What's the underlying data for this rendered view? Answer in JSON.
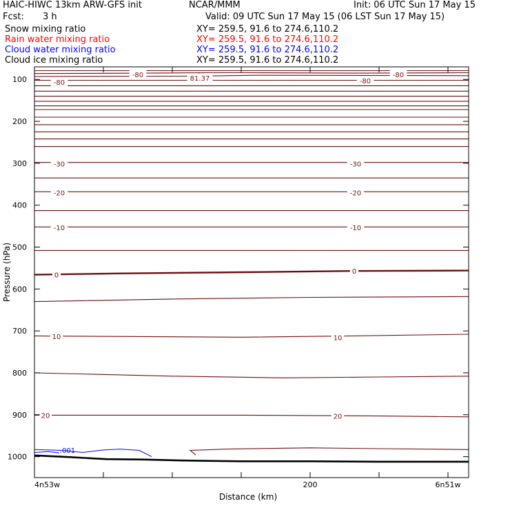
{
  "header": {
    "model": "HAIC-HIWC 13km ARW-GFS init",
    "center": "NCAR/MMM",
    "init": "Init: 06 UTC Sun 17 May 15",
    "fcst_label": "Fcst:",
    "fcst_value": "3 h",
    "valid": "Valid: 09 UTC Sun 17 May 15 (06 LST Sun 17 May 15)"
  },
  "fields": [
    {
      "name": "Snow mixing ratio",
      "xy": "XY= 259.5, 91.6 to 274.6,110.2",
      "color": "#000000"
    },
    {
      "name": "Rain water mixing ratio",
      "xy": "XY= 259.5, 91.6 to 274.6,110.2",
      "color": "#ff0000"
    },
    {
      "name": "Cloud water mixing ratio",
      "xy": "XY= 259.5, 91.6 to 274.6,110.2",
      "color": "#0000ff"
    },
    {
      "name": "Cloud ice mixing ratio",
      "xy": "XY= 259.5, 91.6 to 274.6,110.2",
      "color": "#000000"
    }
  ],
  "chart_data": {
    "type": "line",
    "xlabel": "Distance (km)",
    "ylabel": "Pressure (hPa)",
    "xlim": [
      0,
      315
    ],
    "ylim": [
      1050,
      70
    ],
    "x_ticks": [
      50,
      100,
      150,
      200,
      250,
      300
    ],
    "x_tick_labels": [
      {
        "x": 0,
        "label": "4n53w"
      },
      {
        "x": 200,
        "label": "200"
      },
      {
        "x": 300,
        "label": "6n51w"
      }
    ],
    "y_ticks": [
      100,
      200,
      300,
      400,
      500,
      600,
      700,
      800,
      900,
      1000
    ],
    "y_tick_labels": [
      "100",
      "200",
      "300",
      "400",
      "500",
      "600",
      "700",
      "800",
      "900",
      "1000"
    ],
    "contour_color": "#6b0d0d",
    "temperature_contours": [
      {
        "points": [
          [
            0,
            79
          ],
          [
            315,
            79
          ]
        ]
      },
      {
        "points": [
          [
            0,
            86
          ],
          [
            80,
            85
          ],
          [
            125,
            84
          ],
          [
            160,
            84
          ],
          [
            240,
            85
          ],
          [
            315,
            84
          ]
        ]
      },
      {
        "points": [
          [
            0,
            93
          ],
          [
            120,
            92
          ],
          [
            160,
            90
          ],
          [
            315,
            91
          ]
        ]
      },
      {
        "points": [
          [
            0,
            102
          ],
          [
            315,
            102
          ]
        ]
      },
      {
        "points": [
          [
            0,
            115
          ],
          [
            315,
            115
          ]
        ]
      },
      {
        "points": [
          [
            0,
            128
          ],
          [
            315,
            128
          ]
        ]
      },
      {
        "points": [
          [
            0,
            140
          ],
          [
            315,
            140
          ]
        ]
      },
      {
        "points": [
          [
            0,
            152
          ],
          [
            315,
            152
          ]
        ]
      },
      {
        "points": [
          [
            0,
            163
          ],
          [
            315,
            163
          ]
        ]
      },
      {
        "points": [
          [
            0,
            172
          ],
          [
            315,
            172
          ]
        ]
      },
      {
        "points": [
          [
            0,
            190
          ],
          [
            315,
            190
          ]
        ]
      },
      {
        "points": [
          [
            0,
            208
          ],
          [
            315,
            208
          ]
        ]
      },
      {
        "points": [
          [
            0,
            225
          ],
          [
            315,
            225
          ]
        ]
      },
      {
        "points": [
          [
            0,
            242
          ],
          [
            315,
            242
          ]
        ]
      },
      {
        "points": [
          [
            0,
            260
          ],
          [
            315,
            260
          ]
        ]
      },
      {
        "points": [
          [
            0,
            298
          ],
          [
            315,
            298
          ]
        ]
      },
      {
        "points": [
          [
            0,
            335
          ],
          [
            315,
            335
          ]
        ]
      },
      {
        "points": [
          [
            0,
            368
          ],
          [
            315,
            368
          ]
        ]
      },
      {
        "points": [
          [
            0,
            413
          ],
          [
            315,
            413
          ]
        ]
      },
      {
        "points": [
          [
            0,
            452
          ],
          [
            315,
            452
          ]
        ]
      },
      {
        "points": [
          [
            0,
            508
          ],
          [
            315,
            508
          ]
        ]
      },
      {
        "points": [
          [
            0,
            566
          ],
          [
            60,
            563
          ],
          [
            150,
            560
          ],
          [
            230,
            557
          ],
          [
            315,
            556
          ]
        ],
        "bold": true
      },
      {
        "points": [
          [
            0,
            630
          ],
          [
            100,
            624
          ],
          [
            200,
            620
          ],
          [
            315,
            618
          ]
        ]
      },
      {
        "points": [
          [
            0,
            712
          ],
          [
            150,
            715
          ],
          [
            230,
            712
          ],
          [
            315,
            708
          ]
        ]
      },
      {
        "points": [
          [
            0,
            800
          ],
          [
            100,
            808
          ],
          [
            180,
            812
          ],
          [
            250,
            810
          ],
          [
            315,
            808
          ]
        ]
      },
      {
        "points": [
          [
            0,
            901
          ],
          [
            150,
            901
          ],
          [
            250,
            903
          ],
          [
            315,
            905
          ]
        ]
      },
      {
        "points": [
          [
            117,
            996
          ],
          [
            113,
            985
          ],
          [
            140,
            982
          ],
          [
            200,
            979
          ],
          [
            250,
            981
          ],
          [
            315,
            983
          ]
        ]
      }
    ],
    "contour_labels": [
      {
        "x": 75,
        "y": 88,
        "label": "-80"
      },
      {
        "x": 240,
        "y": 103,
        "label": "-80"
      },
      {
        "x": 264,
        "y": 88,
        "label": "-80"
      },
      {
        "x": 18,
        "y": 106,
        "label": "-80"
      },
      {
        "x": 18,
        "y": 301,
        "label": "-30"
      },
      {
        "x": 233,
        "y": 301,
        "label": "-30"
      },
      {
        "x": 18,
        "y": 370,
        "label": "-20"
      },
      {
        "x": 233,
        "y": 370,
        "label": "-20"
      },
      {
        "x": 18,
        "y": 453,
        "label": "-10"
      },
      {
        "x": 233,
        "y": 453,
        "label": "-10"
      },
      {
        "x": 16,
        "y": 566,
        "label": "0"
      },
      {
        "x": 232,
        "y": 557,
        "label": "0"
      },
      {
        "x": 16,
        "y": 713,
        "label": "10"
      },
      {
        "x": 220,
        "y": 715,
        "label": "10"
      },
      {
        "x": 8,
        "y": 901,
        "label": "20"
      },
      {
        "x": 220,
        "y": 903,
        "label": "20"
      }
    ],
    "low_marker": {
      "x": 120,
      "y": 89,
      "letter": "L",
      "value": "81.37"
    },
    "cloud_water": {
      "color": "#0000ff",
      "label": ".001",
      "label_x": 24,
      "label_y": 986,
      "contours": [
        {
          "points": [
            [
              0,
              983
            ],
            [
              20,
              985
            ],
            [
              35,
              990
            ],
            [
              50,
              984
            ],
            [
              62,
              982
            ],
            [
              76,
              985
            ],
            [
              85,
              1000
            ]
          ]
        },
        {
          "points": [
            [
              0,
              990
            ],
            [
              10,
              988
            ],
            [
              18,
              991
            ]
          ]
        }
      ]
    },
    "terrain": {
      "color": "#000000",
      "points": [
        [
          0,
          997
        ],
        [
          25,
          1001
        ],
        [
          52,
          1006
        ],
        [
          80,
          1007
        ],
        [
          105,
          1009
        ],
        [
          125,
          1010
        ],
        [
          150,
          1011
        ],
        [
          200,
          1011
        ],
        [
          250,
          1012
        ],
        [
          315,
          1012
        ]
      ]
    }
  }
}
